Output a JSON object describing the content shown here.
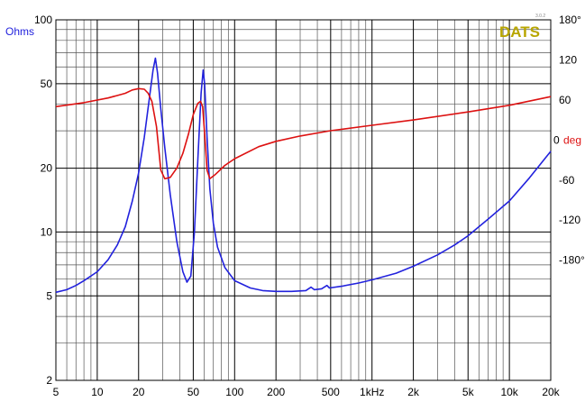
{
  "chart_data": {
    "type": "line",
    "brand": "DATS",
    "version": "3.0.2",
    "left_axis_unit": "Ohms",
    "right_axis_unit": "deg",
    "x_scale": "log",
    "y_scale": "log",
    "xlim": [
      5,
      20000
    ],
    "ylim": [
      2,
      100
    ],
    "y2lim": [
      -360,
      180
    ],
    "x_ticks": [
      {
        "value": 5,
        "label": "5"
      },
      {
        "value": 10,
        "label": "10"
      },
      {
        "value": 20,
        "label": "20"
      },
      {
        "value": 50,
        "label": "50"
      },
      {
        "value": 100,
        "label": "100"
      },
      {
        "value": 200,
        "label": "200"
      },
      {
        "value": 500,
        "label": "500"
      },
      {
        "value": 1000,
        "label": "1kHz"
      },
      {
        "value": 2000,
        "label": "2k"
      },
      {
        "value": 5000,
        "label": "5k"
      },
      {
        "value": 10000,
        "label": "10k"
      },
      {
        "value": 20000,
        "label": "20k"
      }
    ],
    "y_ticks": [
      {
        "value": 100,
        "label": "100"
      },
      {
        "value": 50,
        "label": "50"
      },
      {
        "value": 20,
        "label": "20"
      },
      {
        "value": 10,
        "label": "10"
      },
      {
        "value": 5,
        "label": "5"
      },
      {
        "value": 2,
        "label": "2"
      }
    ],
    "y2_ticks": [
      {
        "value": 180,
        "label": "180°"
      },
      {
        "value": 120,
        "label": "120"
      },
      {
        "value": 60,
        "label": "60"
      },
      {
        "value": 0,
        "label": "0"
      },
      {
        "value": -60,
        "label": "-60"
      },
      {
        "value": -120,
        "label": "-120"
      },
      {
        "value": -180,
        "label": "-180°"
      }
    ],
    "grid": true,
    "series": [
      {
        "axis": "left",
        "color": "#2222dd",
        "points": [
          [
            5,
            5.2
          ],
          [
            6,
            5.35
          ],
          [
            7,
            5.6
          ],
          [
            8,
            5.9
          ],
          [
            10,
            6.5
          ],
          [
            12,
            7.4
          ],
          [
            14,
            8.7
          ],
          [
            16,
            10.6
          ],
          [
            18,
            14
          ],
          [
            20,
            19
          ],
          [
            22,
            28
          ],
          [
            24,
            43
          ],
          [
            25.5,
            58
          ],
          [
            26.5,
            66
          ],
          [
            27.5,
            56
          ],
          [
            29,
            38
          ],
          [
            31,
            25
          ],
          [
            34,
            15
          ],
          [
            38,
            9
          ],
          [
            42,
            6.5
          ],
          [
            45,
            5.8
          ],
          [
            48,
            6.2
          ],
          [
            51,
            10
          ],
          [
            54,
            22
          ],
          [
            57,
            45
          ],
          [
            59,
            58
          ],
          [
            60.5,
            50
          ],
          [
            63,
            28
          ],
          [
            66,
            16
          ],
          [
            70,
            11
          ],
          [
            75,
            8.5
          ],
          [
            85,
            6.8
          ],
          [
            100,
            5.9
          ],
          [
            130,
            5.45
          ],
          [
            160,
            5.3
          ],
          [
            200,
            5.25
          ],
          [
            260,
            5.25
          ],
          [
            330,
            5.3
          ],
          [
            360,
            5.5
          ],
          [
            380,
            5.35
          ],
          [
            430,
            5.4
          ],
          [
            470,
            5.6
          ],
          [
            490,
            5.45
          ],
          [
            600,
            5.55
          ],
          [
            800,
            5.75
          ],
          [
            1000,
            5.95
          ],
          [
            1500,
            6.4
          ],
          [
            2000,
            6.9
          ],
          [
            3000,
            7.8
          ],
          [
            4000,
            8.7
          ],
          [
            5000,
            9.6
          ],
          [
            7000,
            11.5
          ],
          [
            10000,
            14
          ],
          [
            14000,
            18
          ],
          [
            20000,
            24
          ]
        ]
      },
      {
        "axis": "right",
        "color": "#dd1111",
        "points": [
          [
            5,
            50
          ],
          [
            8,
            56
          ],
          [
            12,
            63
          ],
          [
            16,
            70
          ],
          [
            18,
            75
          ],
          [
            20,
            77
          ],
          [
            22,
            76
          ],
          [
            23.5,
            70
          ],
          [
            25,
            58
          ],
          [
            27,
            20
          ],
          [
            29,
            -45
          ],
          [
            31,
            -58
          ],
          [
            34,
            -56
          ],
          [
            38,
            -42
          ],
          [
            42,
            -20
          ],
          [
            46,
            8
          ],
          [
            50,
            38
          ],
          [
            54,
            55
          ],
          [
            56.5,
            58
          ],
          [
            58.5,
            50
          ],
          [
            60.5,
            10
          ],
          [
            63,
            -45
          ],
          [
            66,
            -58
          ],
          [
            72,
            -52
          ],
          [
            85,
            -38
          ],
          [
            100,
            -28
          ],
          [
            150,
            -10
          ],
          [
            200,
            -2
          ],
          [
            300,
            6
          ],
          [
            500,
            14
          ],
          [
            1000,
            22
          ],
          [
            2000,
            30
          ],
          [
            5000,
            42
          ],
          [
            10000,
            52
          ],
          [
            20000,
            65
          ]
        ]
      }
    ]
  }
}
